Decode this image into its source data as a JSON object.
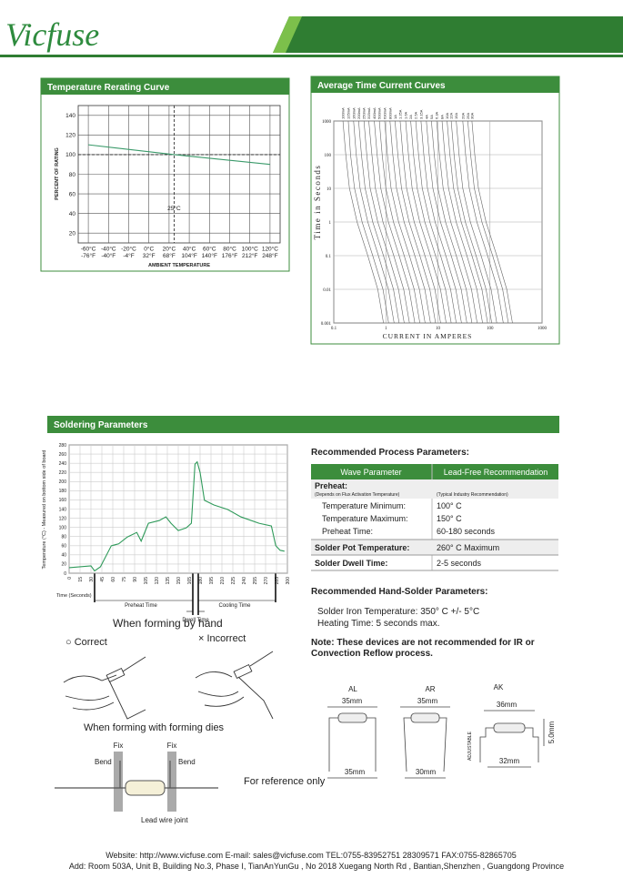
{
  "header": {
    "logo": "Vicfuse"
  },
  "chart_data": [
    {
      "type": "line",
      "title": "Temperature Rerating Curve",
      "x_label": "AMBIENT TEMPERATURE",
      "y_label": "PERCENT OF RATING",
      "x": [
        -60,
        25,
        120
      ],
      "values": [
        110,
        100,
        90
      ],
      "color": "#3a9a6a",
      "xlim": [
        -70,
        130
      ],
      "xticks": [
        {
          "value": -60,
          "label": "-60°C"
        },
        {
          "value": -40,
          "label": "-40°C"
        },
        {
          "value": -20,
          "label": "-20°C"
        },
        {
          "value": 0,
          "label": "0°C"
        },
        {
          "value": 20,
          "label": "20°C"
        },
        {
          "value": 40,
          "label": "40°C"
        },
        {
          "value": 60,
          "label": "60°C"
        },
        {
          "value": 80,
          "label": "80°C"
        },
        {
          "value": 100,
          "label": "100°C"
        },
        {
          "value": 120,
          "label": "120°C"
        }
      ],
      "xtick_labels_secondary": [
        "-76°F",
        "-40°F",
        "-4°F",
        "32°F",
        "68°F",
        "104°F",
        "140°F",
        "176°F",
        "212°F",
        "248°F"
      ],
      "ylim": [
        10,
        150
      ],
      "yticks": [
        20,
        40,
        60,
        80,
        100,
        120,
        140
      ],
      "grid": true,
      "hlines": [
        100
      ],
      "vlines": [
        {
          "value": 25,
          "label": "25°C"
        }
      ]
    },
    {
      "type": "line",
      "title": "Average Time Current Curves",
      "x_label": "CURRENT IN AMPERES",
      "y_label": "Time in Seconds",
      "xscale": "log",
      "yscale": "log",
      "xlim": [
        0.1,
        1000
      ],
      "ylim": [
        0.001,
        1000
      ],
      "xticks": [
        0.1,
        1,
        10,
        100,
        1000
      ],
      "yticks": [
        0.001,
        0.01,
        0.1,
        1,
        10,
        100,
        1000
      ],
      "grid": true,
      "color": "#666666",
      "y": [
        1000,
        100,
        10,
        1,
        0.1,
        0.01,
        0.001
      ],
      "series": [
        {
          "name": "100mA",
          "x": [
            0.15,
            0.17,
            0.2,
            0.28,
            0.45,
            0.7,
            0.9
          ]
        },
        {
          "name": "125mA",
          "x": [
            0.19,
            0.21,
            0.25,
            0.35,
            0.56,
            0.88,
            1.13
          ]
        },
        {
          "name": "160mA",
          "x": [
            0.24,
            0.27,
            0.32,
            0.45,
            0.72,
            1.12,
            1.44
          ]
        },
        {
          "name": "200mA",
          "x": [
            0.3,
            0.34,
            0.4,
            0.56,
            0.9,
            1.4,
            1.8
          ]
        },
        {
          "name": "250mA",
          "x": [
            0.38,
            0.43,
            0.5,
            0.7,
            1.13,
            1.75,
            2.25
          ]
        },
        {
          "name": "315mA",
          "x": [
            0.47,
            0.54,
            0.63,
            0.88,
            1.42,
            2.2,
            2.84
          ]
        },
        {
          "name": "400mA",
          "x": [
            0.6,
            0.68,
            0.8,
            1.12,
            1.8,
            2.8,
            3.6
          ]
        },
        {
          "name": "500mA",
          "x": [
            0.75,
            0.85,
            1,
            1.4,
            2.25,
            3.5,
            4.5
          ]
        },
        {
          "name": "630mA",
          "x": [
            0.95,
            1.07,
            1.26,
            1.76,
            2.84,
            4.41,
            5.67
          ]
        },
        {
          "name": "800mA",
          "x": [
            1.2,
            1.36,
            1.6,
            2.24,
            3.6,
            5.6,
            7.2
          ]
        },
        {
          "name": "1A",
          "x": [
            1.5,
            1.7,
            2,
            2.8,
            4.5,
            7,
            9
          ]
        },
        {
          "name": "1.25A",
          "x": [
            1.88,
            2.13,
            2.5,
            3.5,
            5.63,
            8.75,
            11.25
          ]
        },
        {
          "name": "1.6A",
          "x": [
            2.4,
            2.72,
            3.2,
            4.48,
            7.2,
            11.2,
            14.4
          ]
        },
        {
          "name": "2A",
          "x": [
            3,
            3.4,
            4,
            5.6,
            9,
            14,
            18
          ]
        },
        {
          "name": "2.5A",
          "x": [
            3.75,
            4.25,
            5,
            7,
            11.25,
            17.5,
            22.5
          ]
        },
        {
          "name": "3.15A",
          "x": [
            4.73,
            5.36,
            6.3,
            8.82,
            14.18,
            22.05,
            28.35
          ]
        },
        {
          "name": "4A",
          "x": [
            6,
            6.8,
            8,
            11.2,
            18,
            28,
            36
          ]
        },
        {
          "name": "5A",
          "x": [
            7.5,
            8.5,
            10,
            14,
            22.5,
            35,
            45
          ]
        },
        {
          "name": "6.3A",
          "x": [
            9.45,
            10.71,
            12.6,
            17.64,
            28.35,
            44.1,
            56.7
          ]
        },
        {
          "name": "8A",
          "x": [
            12,
            13.6,
            16,
            22.4,
            36,
            56,
            72
          ]
        },
        {
          "name": "10A",
          "x": [
            15,
            17,
            20,
            28,
            45,
            70,
            90
          ]
        },
        {
          "name": "12A",
          "x": [
            18,
            20.4,
            24,
            33.6,
            54,
            84,
            108
          ]
        },
        {
          "name": "15A",
          "x": [
            22.5,
            25.5,
            30,
            42,
            67.5,
            105,
            135
          ]
        },
        {
          "name": "20A",
          "x": [
            30,
            34,
            40,
            56,
            90,
            140,
            180
          ]
        },
        {
          "name": "25A",
          "x": [
            37.5,
            42.5,
            50,
            70,
            112.5,
            175,
            225
          ]
        },
        {
          "name": "30A",
          "x": [
            45,
            51,
            60,
            84,
            135,
            210,
            270
          ]
        }
      ]
    },
    {
      "type": "line",
      "title": "Soldering Parameters",
      "x_label": "Time (Seconds)",
      "y_label": "Temperature (°C) - Measured on bottom side of board",
      "x": [
        0,
        30,
        35,
        43,
        58,
        68,
        80,
        93,
        99,
        109,
        124,
        133,
        140,
        150,
        161,
        168,
        173,
        176,
        180,
        186,
        199,
        218,
        236,
        261,
        278,
        284,
        290,
        296
      ],
      "values": [
        12,
        16,
        5,
        14,
        60,
        64,
        79,
        89,
        70,
        109,
        115,
        123,
        109,
        93,
        99,
        109,
        238,
        243,
        220,
        159,
        149,
        139,
        123,
        109,
        103,
        60,
        50,
        48
      ],
      "color": "#2f9a5a",
      "xlim": [
        0,
        300
      ],
      "xticks": [
        0,
        15,
        30,
        45,
        60,
        75,
        90,
        105,
        120,
        135,
        150,
        165,
        180,
        195,
        210,
        225,
        240,
        255,
        270,
        285,
        300
      ],
      "ylim": [
        0,
        280
      ],
      "yticks": [
        0,
        20,
        40,
        60,
        80,
        100,
        120,
        140,
        160,
        180,
        200,
        220,
        240,
        260,
        280
      ],
      "grid": true,
      "annotations": [
        "Preheat Time",
        "Dwell Time",
        "Cooling Time"
      ]
    }
  ],
  "process": {
    "title": "Recommended Process Parameters:",
    "table": {
      "header": [
        "Wave Parameter",
        "Lead-Free Recommendation"
      ],
      "rows": [
        [
          "Preheat:"
        ],
        [
          "(Depends on Flux Activation Temperature)",
          "(Typical Industry Recommendation)"
        ],
        [
          "Temperature Minimum:",
          "100° C"
        ],
        [
          "Temperature Maximum:",
          "150° C"
        ],
        [
          "Preheat Time:",
          "60-180 seconds"
        ],
        [
          "Solder Pot Temperature:",
          "260° C Maximum"
        ],
        [
          "Solder Dwell Time:",
          "2-5 seconds"
        ]
      ]
    }
  },
  "hand": {
    "title": "Recommended Hand-Solder Parameters:",
    "lines": [
      "Solder Iron Temperature:  350° C +/- 5°C",
      "Heating Time:  5 seconds max."
    ]
  },
  "note": [
    "Note: These devices are not recommended for IR or",
    "Convection Reflow process."
  ],
  "forming": {
    "hand_title": "When forming by hand",
    "correct": "○ Correct",
    "incorrect": "× Incorrect",
    "dies_title": "When forming with forming dies",
    "fix": [
      "Fix",
      "Fix"
    ],
    "bend": [
      "Bend",
      "Bend"
    ],
    "joint": "Lead wire joint",
    "reference": "For reference only"
  },
  "leads": [
    {
      "name": "AL",
      "dims": [
        "35mm",
        "35mm"
      ]
    },
    {
      "name": "AR",
      "dims": [
        "35mm",
        "30mm"
      ]
    },
    {
      "name": "AK",
      "dims": [
        "36mm",
        "32mm",
        "5.0mm"
      ],
      "note": "ADJUSTABLE"
    }
  ],
  "footer": {
    "line1": "Website: http://www.vicfuse.com E-mail: sales@vicfuse.com TEL:0755-83952751 28309571  FAX:0755-82865705",
    "line2": "Add: Room 503A, Unit B, Building No.3, Phase I, TianAnYunGu , No 2018 Xuegang North Rd , Bantian,Shenzhen , Guangdong Province"
  }
}
